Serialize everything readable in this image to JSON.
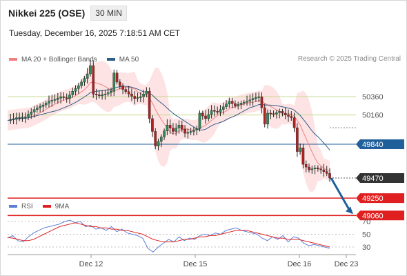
{
  "header": {
    "title": "Nikkei 225 (OSE)",
    "timeframe": "30 MIN",
    "datetime": "Tuesday, December 16, 2025 7:18:51 AM CET"
  },
  "legend": {
    "items": [
      {
        "label": "MA 20 + Bollinger Bands",
        "color": "#f08080"
      },
      {
        "label": "MA 50",
        "color": "#2f5d8a"
      }
    ],
    "credit": "Research © 2025 Trading Central"
  },
  "rsi_legend": {
    "items": [
      {
        "label": "RSI",
        "color": "#5b7fd6"
      },
      {
        "label": "9MA",
        "color": "#e02020"
      }
    ]
  },
  "chart_data": [
    {
      "type": "line",
      "title": "Nikkei 225 (OSE)",
      "y_axis_side": "right",
      "ylim": [
        48900,
        50800
      ],
      "levels": [
        {
          "value": 50360,
          "label": "50360",
          "kind": "target"
        },
        {
          "value": 50160,
          "label": "50160",
          "kind": "target"
        },
        {
          "value": 49840,
          "label": "49840",
          "kind": "pivot"
        },
        {
          "value": 49470,
          "label": "49470",
          "kind": "last"
        },
        {
          "value": 49250,
          "label": "49250",
          "kind": "support"
        },
        {
          "value": 49060,
          "label": "49060",
          "kind": "support"
        }
      ],
      "forecast_arrow": {
        "from": 49470,
        "to": 49060,
        "direction": "down"
      },
      "x_ticks": [
        "Dec 12",
        "Dec 15",
        "Dec 16",
        "Dec 23"
      ],
      "price_path": [
        [
          0,
          50100
        ],
        [
          3,
          50130
        ],
        [
          6,
          50140
        ],
        [
          9,
          50220
        ],
        [
          12,
          50270
        ],
        [
          14,
          50310
        ],
        [
          16,
          50330
        ],
        [
          18,
          50360
        ],
        [
          20,
          50340
        ],
        [
          22,
          50420
        ],
        [
          24,
          50480
        ],
        [
          26,
          50560
        ],
        [
          27,
          50610
        ],
        [
          28,
          50700
        ],
        [
          29,
          50390
        ],
        [
          31,
          50370
        ],
        [
          33,
          50390
        ],
        [
          35,
          50420
        ],
        [
          36,
          50620
        ],
        [
          37,
          50520
        ],
        [
          39,
          50440
        ],
        [
          41,
          50390
        ],
        [
          43,
          50340
        ],
        [
          45,
          50360
        ],
        [
          47,
          50420
        ],
        [
          48,
          50120
        ],
        [
          49,
          49980
        ],
        [
          50,
          49820
        ],
        [
          52,
          49920
        ],
        [
          54,
          50050
        ],
        [
          56,
          49980
        ],
        [
          58,
          50050
        ],
        [
          60,
          49960
        ],
        [
          62,
          49980
        ],
        [
          64,
          50010
        ],
        [
          65,
          50180
        ],
        [
          67,
          50120
        ],
        [
          69,
          50210
        ],
        [
          71,
          50190
        ],
        [
          73,
          50250
        ],
        [
          75,
          50310
        ],
        [
          77,
          50260
        ],
        [
          79,
          50290
        ],
        [
          81,
          50310
        ],
        [
          83,
          50340
        ],
        [
          85,
          50360
        ],
        [
          86,
          50240
        ],
        [
          87,
          50060
        ],
        [
          88,
          50180
        ],
        [
          90,
          50170
        ],
        [
          92,
          50200
        ],
        [
          94,
          50160
        ],
        [
          96,
          50130
        ],
        [
          97,
          50020
        ],
        [
          98,
          49760
        ],
        [
          99,
          49800
        ],
        [
          100,
          49620
        ],
        [
          102,
          49560
        ],
        [
          104,
          49580
        ],
        [
          106,
          49560
        ],
        [
          108,
          49520
        ],
        [
          109,
          49470
        ]
      ]
    },
    {
      "type": "line",
      "title": "",
      "ylim": [
        20,
        80
      ],
      "y_ticks": [
        70,
        50,
        30
      ],
      "series": [
        {
          "name": "RSI",
          "values": [
            44,
            48,
            40,
            38,
            46,
            52,
            56,
            60,
            62,
            64,
            66,
            70,
            72,
            68,
            70,
            62,
            64,
            58,
            60,
            56,
            62,
            54,
            58,
            52,
            50,
            48,
            44,
            28,
            22,
            30,
            36,
            42,
            38,
            46,
            40,
            44,
            42,
            48,
            50,
            48,
            52,
            50,
            56,
            58,
            60,
            56,
            54,
            52,
            50,
            44,
            40,
            46,
            42,
            48,
            38,
            46,
            44,
            36,
            32,
            34,
            32,
            30,
            28
          ]
        },
        {
          "name": "9MA",
          "values": [
            45,
            44,
            42,
            40,
            40,
            42,
            46,
            50,
            54,
            58,
            62,
            64,
            66,
            68,
            66,
            64,
            62,
            62,
            60,
            60,
            58,
            58,
            56,
            56,
            54,
            52,
            50,
            46,
            42,
            40,
            38,
            38,
            38,
            40,
            42,
            42,
            44,
            46,
            46,
            48,
            48,
            50,
            52,
            54,
            56,
            56,
            56,
            54,
            52,
            50,
            48,
            46,
            44,
            44,
            42,
            42,
            42,
            40,
            38,
            36,
            34,
            32,
            30
          ]
        }
      ]
    }
  ]
}
